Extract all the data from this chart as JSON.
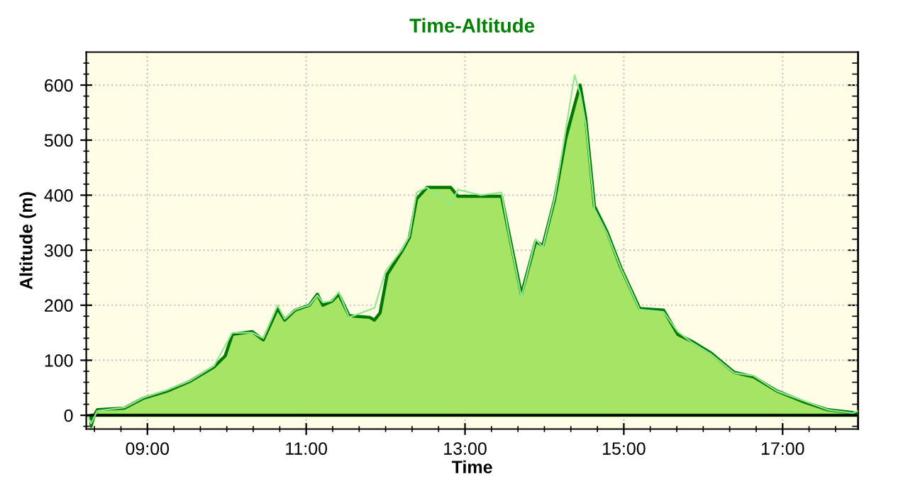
{
  "chart_data": {
    "type": "area",
    "title": "Time-Altitude",
    "xlabel": "Time",
    "ylabel": "Altitude (m)",
    "xlim": [
      8.23,
      17.95
    ],
    "ylim": [
      -25,
      660
    ],
    "xticks": [
      {
        "value": 8.333,
        "label": null
      },
      {
        "value": 8.667,
        "label": null
      },
      {
        "value": 9,
        "label": "09:00"
      },
      {
        "value": 9.333,
        "label": null
      },
      {
        "value": 9.667,
        "label": null
      },
      {
        "value": 10,
        "label": null
      },
      {
        "value": 10.333,
        "label": null
      },
      {
        "value": 10.667,
        "label": null
      },
      {
        "value": 11,
        "label": "11:00"
      },
      {
        "value": 11.333,
        "label": null
      },
      {
        "value": 11.667,
        "label": null
      },
      {
        "value": 12,
        "label": null
      },
      {
        "value": 12.333,
        "label": null
      },
      {
        "value": 12.667,
        "label": null
      },
      {
        "value": 13,
        "label": "13:00"
      },
      {
        "value": 13.333,
        "label": null
      },
      {
        "value": 13.667,
        "label": null
      },
      {
        "value": 14,
        "label": null
      },
      {
        "value": 14.333,
        "label": null
      },
      {
        "value": 14.667,
        "label": null
      },
      {
        "value": 15,
        "label": "15:00"
      },
      {
        "value": 15.333,
        "label": null
      },
      {
        "value": 15.667,
        "label": null
      },
      {
        "value": 16,
        "label": null
      },
      {
        "value": 16.333,
        "label": null
      },
      {
        "value": 16.667,
        "label": null
      },
      {
        "value": 17,
        "label": "17:00"
      },
      {
        "value": 17.333,
        "label": null
      },
      {
        "value": 17.667,
        "label": null
      }
    ],
    "yticks": [
      {
        "value": -20,
        "label": null
      },
      0,
      {
        "value": 20,
        "label": null
      },
      {
        "value": 40,
        "label": null
      },
      {
        "value": 60,
        "label": null
      },
      {
        "value": 80,
        "label": null
      },
      100,
      {
        "value": 120,
        "label": null
      },
      {
        "value": 140,
        "label": null
      },
      {
        "value": 160,
        "label": null
      },
      {
        "value": 180,
        "label": null
      },
      200,
      {
        "value": 220,
        "label": null
      },
      {
        "value": 240,
        "label": null
      },
      {
        "value": 260,
        "label": null
      },
      {
        "value": 280,
        "label": null
      },
      300,
      {
        "value": 320,
        "label": null
      },
      {
        "value": 340,
        "label": null
      },
      {
        "value": 360,
        "label": null
      },
      {
        "value": 380,
        "label": null
      },
      400,
      {
        "value": 420,
        "label": null
      },
      {
        "value": 440,
        "label": null
      },
      {
        "value": 460,
        "label": null
      },
      {
        "value": 480,
        "label": null
      },
      500,
      {
        "value": 520,
        "label": null
      },
      {
        "value": 540,
        "label": null
      },
      {
        "value": 560,
        "label": null
      },
      {
        "value": 580,
        "label": null
      },
      600,
      {
        "value": 620,
        "label": null
      },
      {
        "value": 640,
        "label": null
      }
    ],
    "grid": true,
    "ref_lines": [
      {
        "axis": "y",
        "value": 0,
        "color": "#000000"
      }
    ],
    "series": [
      {
        "type": "line",
        "color": "#90e890",
        "x": [
          8.26,
          8.29,
          8.37,
          8.71,
          8.95,
          9.25,
          9.54,
          9.84,
          10.07,
          10.32,
          10.46,
          10.64,
          10.73,
          10.86,
          11.04,
          11.14,
          11.21,
          11.32,
          11.41,
          11.54,
          11.86,
          12.0,
          12.2,
          12.3,
          12.39,
          12.52,
          12.82,
          12.91,
          13.2,
          13.46,
          13.55,
          13.71,
          13.89,
          13.98,
          14.13,
          14.27,
          14.38,
          14.45,
          14.52,
          14.63,
          14.79,
          14.96,
          15.2,
          15.5,
          15.68,
          15.86,
          16.09,
          16.39,
          16.63,
          16.93,
          17.29,
          17.57,
          17.88,
          17.95
        ],
        "values": [
          -5,
          -15,
          8,
          14,
          32,
          46,
          63,
          90,
          150,
          150,
          140,
          200,
          175,
          192,
          200,
          218,
          205,
          208,
          224,
          178,
          195,
          262,
          300,
          326,
          405,
          414,
          383,
          410,
          400,
          405,
          330,
          215,
          320,
          305,
          395,
          520,
          618,
          585,
          530,
          375,
          330,
          268,
          192,
          188,
          152,
          132,
          112,
          77,
          72,
          44,
          25,
          10,
          4,
          8
        ]
      },
      {
        "color": "#007800",
        "x": [
          8.29,
          8.33,
          8.37,
          8.71,
          8.95,
          9.25,
          9.54,
          9.84,
          9.98,
          10.07,
          10.32,
          10.46,
          10.64,
          10.73,
          10.86,
          11.04,
          11.14,
          11.21,
          11.32,
          11.41,
          11.54,
          11.8,
          11.86,
          11.93,
          12.02,
          12.2,
          12.3,
          12.39,
          12.52,
          12.82,
          12.91,
          13.46,
          13.55,
          13.71,
          13.89,
          13.98,
          14.13,
          14.27,
          14.39,
          14.45,
          14.52,
          14.63,
          14.79,
          14.96,
          15.2,
          15.5,
          15.68,
          15.86,
          16.09,
          16.39,
          16.63,
          16.93,
          17.29,
          17.57,
          17.88,
          17.95
        ],
        "values": [
          -20,
          0,
          10,
          13,
          31,
          44,
          62,
          88,
          108,
          147,
          152,
          137,
          194,
          173,
          191,
          200,
          220,
          200,
          207,
          220,
          181,
          178,
          173,
          186,
          256,
          297,
          323,
          393,
          414,
          414,
          398,
          398,
          333,
          220,
          316,
          308,
          393,
          504,
          569,
          600,
          540,
          380,
          333,
          269,
          194,
          191,
          147,
          134,
          114,
          78,
          70,
          44,
          23,
          10,
          5,
          2
        ]
      }
    ]
  }
}
